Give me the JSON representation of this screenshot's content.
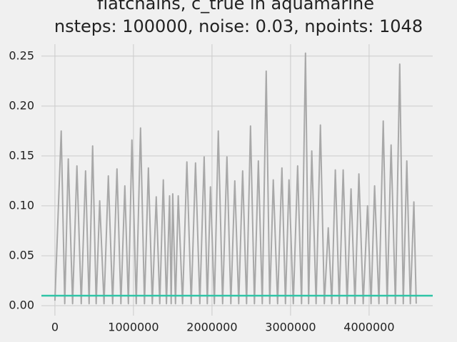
{
  "chart_data": {
    "type": "line",
    "title": [
      "flatchains, c_true in aquamarine",
      "nsteps: 100000, noise: 0.03, npoints: 1048"
    ],
    "x": [
      0,
      80000,
      125000,
      170000,
      225000,
      280000,
      335000,
      390000,
      435000,
      480000,
      525000,
      570000,
      625000,
      680000,
      735000,
      790000,
      840000,
      890000,
      935000,
      980000,
      1035000,
      1090000,
      1140000,
      1190000,
      1240000,
      1290000,
      1335000,
      1380000,
      1420000,
      1460000,
      1480000,
      1500000,
      1535000,
      1570000,
      1625000,
      1680000,
      1735000,
      1790000,
      1845000,
      1900000,
      1940000,
      1980000,
      2030000,
      2080000,
      2135000,
      2190000,
      2240000,
      2290000,
      2340000,
      2390000,
      2440000,
      2490000,
      2540000,
      2590000,
      2640000,
      2690000,
      2735000,
      2780000,
      2835000,
      2890000,
      2935000,
      2980000,
      3035000,
      3090000,
      3140000,
      3190000,
      3230000,
      3270000,
      3325000,
      3380000,
      3430000,
      3480000,
      3525000,
      3570000,
      3620000,
      3670000,
      3720000,
      3770000,
      3820000,
      3870000,
      3925000,
      3980000,
      4025000,
      4070000,
      4125000,
      4180000,
      4230000,
      4280000,
      4335000,
      4390000,
      4435000,
      4480000,
      4525000,
      4570000,
      4600000
    ],
    "series": [
      {
        "color": "#a8a8a8",
        "values": [
          0.005,
          0.175,
          0.002,
          0.147,
          0.002,
          0.14,
          0.002,
          0.135,
          0.002,
          0.16,
          0.002,
          0.105,
          0.002,
          0.13,
          0.002,
          0.137,
          0.002,
          0.12,
          0.002,
          0.166,
          0.002,
          0.178,
          0.002,
          0.138,
          0.002,
          0.109,
          0.002,
          0.126,
          0.002,
          0.11,
          0.002,
          0.112,
          0.002,
          0.11,
          0.002,
          0.144,
          0.002,
          0.143,
          0.002,
          0.149,
          0.002,
          0.119,
          0.002,
          0.175,
          0.002,
          0.149,
          0.002,
          0.125,
          0.002,
          0.135,
          0.002,
          0.18,
          0.002,
          0.145,
          0.002,
          0.235,
          0.002,
          0.126,
          0.002,
          0.138,
          0.002,
          0.126,
          0.002,
          0.14,
          0.002,
          0.253,
          0.002,
          0.155,
          0.002,
          0.181,
          0.002,
          0.078,
          0.002,
          0.136,
          0.002,
          0.136,
          0.002,
          0.117,
          0.002,
          0.132,
          0.002,
          0.1,
          0.002,
          0.12,
          0.002,
          0.185,
          0.002,
          0.161,
          0.002,
          0.242,
          0.002,
          0.145,
          0.002,
          0.104,
          0.002
        ]
      }
    ],
    "hlines": [
      {
        "value": 0.01,
        "color": "#2ec4a6"
      }
    ],
    "xlim": [
      -172000,
      4810000
    ],
    "ylim": [
      -0.01,
      0.262
    ],
    "xticks": [
      0,
      1000000,
      2000000,
      3000000,
      4000000
    ],
    "yticks": [
      {
        "value": 0,
        "label": "0.00"
      },
      0.05,
      {
        "value": 0.1,
        "label": "0.10"
      },
      0.15,
      {
        "value": 0.2,
        "label": "0.20"
      },
      0.25
    ],
    "grid": true
  }
}
